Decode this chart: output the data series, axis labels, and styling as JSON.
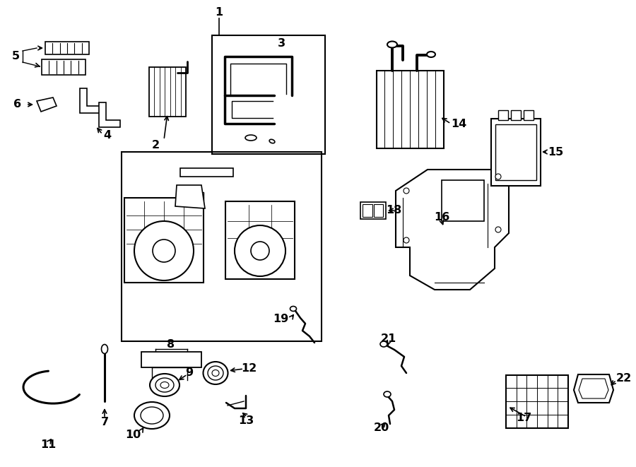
{
  "bg_color": "#ffffff",
  "line_color": "#000000",
  "fig_w": 9.0,
  "fig_h": 6.61,
  "dpi": 100
}
